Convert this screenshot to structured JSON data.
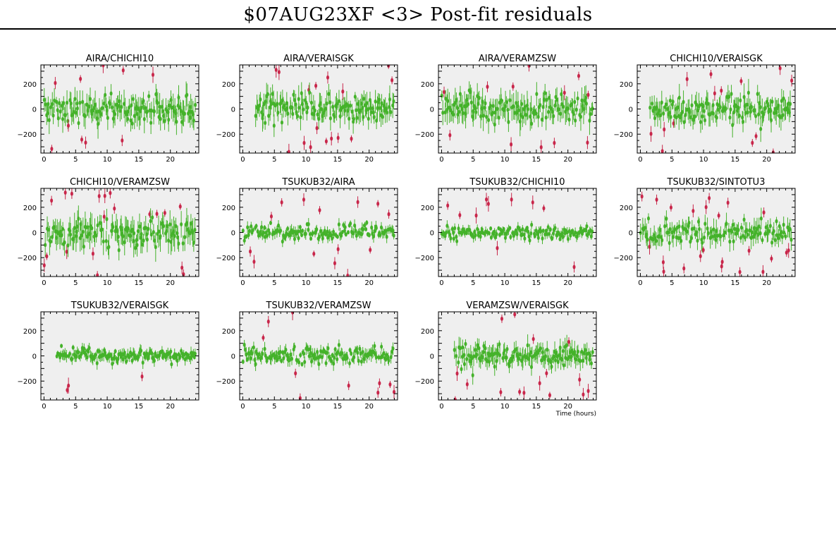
{
  "title": "$07AUG23XF <3> Post-fit residuals",
  "colors": {
    "good": "#44b22a",
    "flagged": "#c8264a",
    "panel_bg": "#efefef",
    "frame": "#000000"
  },
  "chart_data": [
    {
      "type": "scatter",
      "title": "AIRA/CHICHI10",
      "xlim": [
        -0.5,
        24.5
      ],
      "ylim": [
        -350,
        350
      ],
      "xticks": [
        0,
        5,
        10,
        15,
        20
      ],
      "yticks": [
        -200,
        0,
        200
      ],
      "seed": 11,
      "xstart": 0.0,
      "xend": 24.0,
      "spread": 70,
      "err": 90,
      "flagged_frac": 0.05
    },
    {
      "type": "scatter",
      "title": "AIRA/VERAISGK",
      "xlim": [
        -0.5,
        24.5
      ],
      "ylim": [
        -350,
        350
      ],
      "xticks": [
        0,
        5,
        10,
        15,
        20
      ],
      "yticks": [
        -200,
        0,
        200
      ],
      "seed": 23,
      "xstart": 2.0,
      "xend": 24.0,
      "spread": 65,
      "err": 85,
      "flagged_frac": 0.08
    },
    {
      "type": "scatter",
      "title": "AIRA/VERAMZSW",
      "xlim": [
        -0.5,
        24.5
      ],
      "ylim": [
        -350,
        350
      ],
      "xticks": [
        0,
        5,
        10,
        15,
        20
      ],
      "yticks": [
        -200,
        0,
        200
      ],
      "seed": 37,
      "xstart": 0.0,
      "xend": 24.0,
      "spread": 70,
      "err": 95,
      "flagged_frac": 0.1
    },
    {
      "type": "scatter",
      "title": "CHICHI10/VERAISGK",
      "xlim": [
        -0.5,
        24.5
      ],
      "ylim": [
        -350,
        350
      ],
      "xticks": [
        0,
        5,
        10,
        15,
        20
      ],
      "yticks": [
        -200,
        0,
        200
      ],
      "seed": 41,
      "xstart": 1.5,
      "xend": 24.0,
      "spread": 70,
      "err": 85,
      "flagged_frac": 0.09
    },
    {
      "type": "scatter",
      "title": "CHICHI10/VERAMZSW",
      "xlim": [
        -0.5,
        24.5
      ],
      "ylim": [
        -350,
        350
      ],
      "xticks": [
        0,
        5,
        10,
        15,
        20
      ],
      "yticks": [
        -200,
        0,
        200
      ],
      "seed": 53,
      "xstart": 0.0,
      "xend": 24.0,
      "spread": 70,
      "err": 100,
      "flagged_frac": 0.09
    },
    {
      "type": "scatter",
      "title": "TSUKUB32/AIRA",
      "xlim": [
        -0.5,
        24.5
      ],
      "ylim": [
        -350,
        350
      ],
      "xticks": [
        0,
        5,
        10,
        15,
        20
      ],
      "yticks": [
        -200,
        0,
        200
      ],
      "seed": 67,
      "xstart": 0.0,
      "xend": 24.0,
      "spread": 35,
      "err": 40,
      "flagged_frac": 0.09
    },
    {
      "type": "scatter",
      "title": "TSUKUB32/CHICHI10",
      "xlim": [
        -0.5,
        24.5
      ],
      "ylim": [
        -350,
        350
      ],
      "xticks": [
        0,
        5,
        10,
        15,
        20
      ],
      "yticks": [
        -200,
        0,
        200
      ],
      "seed": 71,
      "xstart": 0.0,
      "xend": 24.0,
      "spread": 30,
      "err": 35,
      "flagged_frac": 0.06
    },
    {
      "type": "scatter",
      "title": "TSUKUB32/SINTOTU3",
      "xlim": [
        -0.5,
        24.5
      ],
      "ylim": [
        -350,
        350
      ],
      "xticks": [
        0,
        5,
        10,
        15,
        20
      ],
      "yticks": [
        -200,
        0,
        200
      ],
      "seed": 83,
      "xstart": 0.0,
      "xend": 24.0,
      "spread": 55,
      "err": 70,
      "flagged_frac": 0.12
    },
    {
      "type": "scatter",
      "title": "TSUKUB32/VERAISGK",
      "xlim": [
        -0.5,
        24.5
      ],
      "ylim": [
        -350,
        350
      ],
      "xticks": [
        0,
        5,
        10,
        15,
        20
      ],
      "yticks": [
        -200,
        0,
        200
      ],
      "seed": 97,
      "xstart": 2.0,
      "xend": 24.0,
      "spread": 35,
      "err": 40,
      "flagged_frac": 0.05
    },
    {
      "type": "scatter",
      "title": "TSUKUB32/VERAMZSW",
      "xlim": [
        -0.5,
        24.5
      ],
      "ylim": [
        -350,
        350
      ],
      "xticks": [
        0,
        5,
        10,
        15,
        20
      ],
      "yticks": [
        -200,
        0,
        200
      ],
      "seed": 103,
      "xstart": 0.0,
      "xend": 24.0,
      "spread": 40,
      "err": 45,
      "flagged_frac": 0.09
    },
    {
      "type": "scatter",
      "title": "VERAMZSW/VERAISGK",
      "xlim": [
        -0.5,
        24.5
      ],
      "ylim": [
        -350,
        350
      ],
      "xticks": [
        0,
        5,
        10,
        15,
        20
      ],
      "yticks": [
        -200,
        0,
        200
      ],
      "seed": 113,
      "xstart": 2.0,
      "xend": 24.0,
      "spread": 55,
      "err": 70,
      "flagged_frac": 0.12,
      "xlabel": "Time (hours)"
    }
  ]
}
